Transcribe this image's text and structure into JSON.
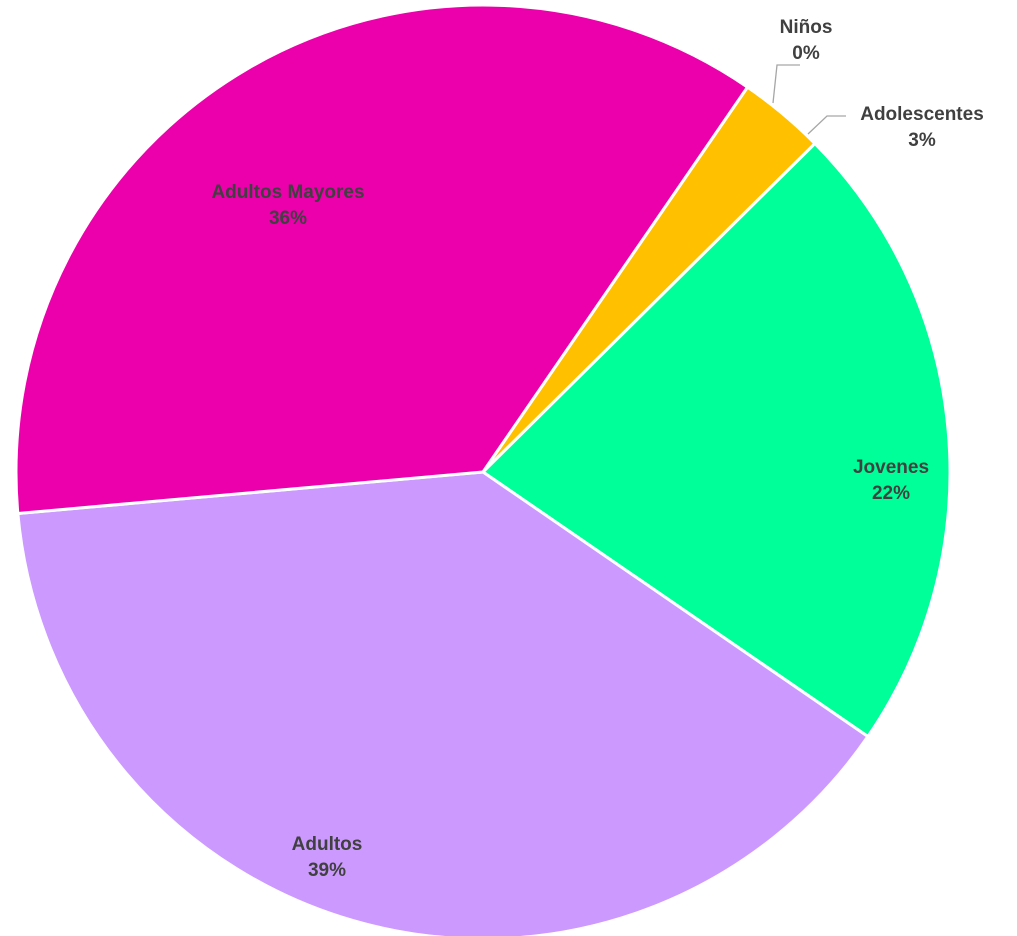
{
  "chart_data": {
    "type": "pie",
    "slices": [
      {
        "name": "Niños",
        "value": 0,
        "label": "0%",
        "color": "#4472c4"
      },
      {
        "name": "Adolescentes",
        "value": 3,
        "label": "3%",
        "color": "#ffc000"
      },
      {
        "name": "Jovenes",
        "value": 22,
        "label": "22%",
        "color": "#00ff99"
      },
      {
        "name": "Adultos",
        "value": 39,
        "label": "39%",
        "color": "#cc99ff"
      },
      {
        "name": "Adultos Mayores",
        "value": 36,
        "label": "36%",
        "color": "#ec00ac"
      }
    ],
    "start_angle_deg": 34.5,
    "direction": "clockwise",
    "label_color": "#404040",
    "legend": "none"
  }
}
